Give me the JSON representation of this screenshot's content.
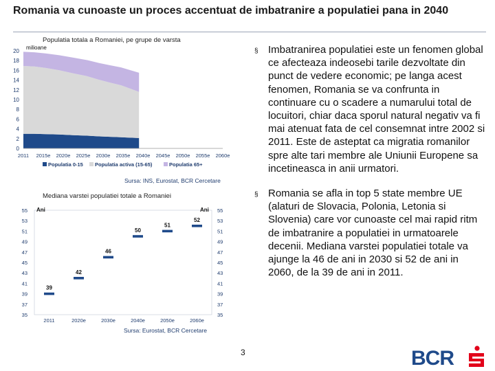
{
  "slide": {
    "title": "Romania va cunoaste un proces accentuat de imbatranire a populatiei pana in 2040",
    "page_number": "3"
  },
  "bullets": [
    "Imbatranirea populatiei este un fenomen global ce afecteaza indeosebi tarile dezvoltate din punct de vedere economic; pe langa acest fenomen, Romania se va confrunta in continuare cu o scadere a numarului total de locuitori, chiar daca sporul natural negativ va fi mai atenuat fata de cel consemnat intre 2002 si 2011. Este de asteptat ca migratia romanilor spre alte tari membre ale Uniunii Europene sa incetineasca in anii urmatori.",
    "Romania se afla in top 5 state membre UE (alaturi de Slovacia, Polonia, Letonia si Slovenia) care vor cunoaste cel mai rapid ritm de imbatranire a populatiei in urmatoarele decenii. Mediana varstei populatiei totale va ajunge la 46 de ani in 2030 si 52 de ani in 2060, de la 39 de ani in 2011."
  ],
  "bullet_marker": "§",
  "logo": {
    "text": "BCR",
    "color": "#1f4a8a",
    "accent": "#e2001a"
  },
  "colors": {
    "pop_0_15": "#1f4a8a",
    "pop_active": "#d9d9d9",
    "pop_65": "#c4b5e3",
    "median_marker": "#1f4a8a",
    "axis": "#1f3c6e",
    "grid": "#cfd5df"
  },
  "chart_data": [
    {
      "type": "area",
      "title": "Populatia totala a Romaniei, pe grupe de varsta",
      "unit_label": "milioane",
      "source": "Sursa: INS, Eurostat, BCR Cercetare",
      "categories": [
        "2011",
        "2015e",
        "2020e",
        "2025e",
        "2030e",
        "2035e",
        "2040e",
        "2045e",
        "2050e",
        "2055e",
        "2060e"
      ],
      "x": [
        0,
        0.55,
        1.15,
        1.8,
        2.5,
        3.2,
        3.8,
        4.35,
        4.9,
        5.35,
        5.8
      ],
      "x_ticks": [
        0,
        1,
        2,
        3,
        4,
        5,
        6,
        7,
        8,
        9,
        10
      ],
      "stacked": true,
      "series": [
        {
          "name": "Populatia 0-15",
          "values": [
            3.0,
            2.98,
            2.93,
            2.86,
            2.72,
            2.6,
            2.47,
            2.38,
            2.3,
            2.2,
            2.12
          ]
        },
        {
          "name": "Populatia activa (15-65)",
          "values": [
            13.9,
            13.82,
            13.55,
            13.17,
            12.68,
            12.2,
            11.6,
            11.1,
            10.64,
            10.07,
            9.46
          ]
        },
        {
          "name": "Populatia 65+",
          "values": [
            2.9,
            2.9,
            2.97,
            3.07,
            3.2,
            3.3,
            3.43,
            3.56,
            3.66,
            3.79,
            3.92
          ]
        }
      ],
      "xlabel": "",
      "ylabel": "milioane",
      "ylim": [
        0,
        20
      ],
      "y_ticks": [
        0,
        2,
        4,
        6,
        8,
        10,
        12,
        14,
        16,
        18,
        20
      ],
      "legend": "bottom"
    },
    {
      "type": "scatter",
      "title": "Mediana varstei populatiei totale a Romaniei",
      "unit_label": "Ani",
      "source": "Sursa: Eurostat, BCR Cercetare",
      "categories": [
        "2011",
        "2020e",
        "2030e",
        "2040e",
        "2050e",
        "2060e"
      ],
      "values": [
        39,
        42,
        46,
        50,
        51,
        52
      ],
      "xlabel": "",
      "ylabel": "Ani",
      "ylim": [
        35,
        55
      ],
      "y_ticks": [
        35,
        37,
        39,
        41,
        43,
        45,
        47,
        49,
        51,
        53,
        55
      ],
      "y_right_ticks": [
        "35",
        "37",
        "39",
        "41",
        "43",
        "45",
        "47",
        "49",
        "51",
        "53",
        "55"
      ],
      "right_unit_label": "Ani",
      "legend": "none"
    }
  ]
}
